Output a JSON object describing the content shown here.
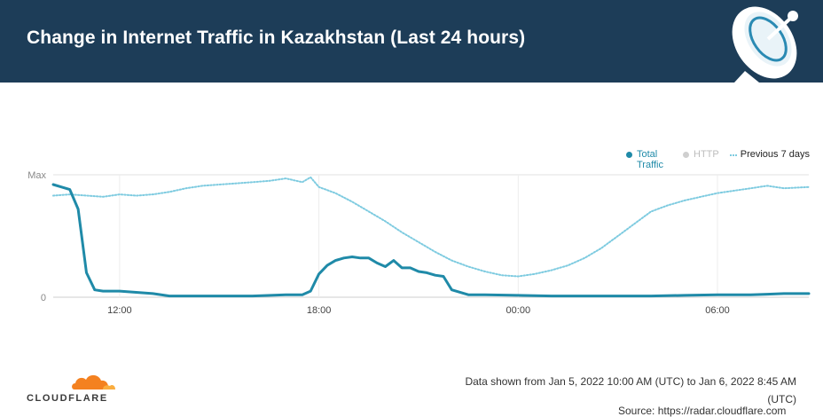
{
  "header": {
    "title": "Change in Internet Traffic in Kazakhstan (Last 24 hours)"
  },
  "legend": {
    "total_label": "Total Traffic",
    "http_label": "HTTP",
    "previous_label": "Previous 7 days"
  },
  "footer": {
    "brand": "CLOUDFLARE",
    "range_line1": "Data shown from Jan 5, 2022 10:00 AM (UTC) to Jan 6, 2022 8:45 AM",
    "range_line2": "(UTC)",
    "source": "Source: https://radar.cloudflare.com"
  },
  "colors": {
    "header_bg": "#1d3d58",
    "total": "#1f8aa8",
    "previous": "#7ecbe0",
    "http": "#cfcfcf",
    "logo_orange": "#f48120"
  },
  "chart_data": {
    "type": "line",
    "xlabel": "",
    "ylabel": "",
    "x_ticks": [
      "12:00",
      "18:00",
      "00:00",
      "06:00"
    ],
    "y_ticks": [
      "Max",
      "0"
    ],
    "x_range_hours": [
      0,
      22.75
    ],
    "ylim": [
      0,
      100
    ],
    "legend_position": "top-right",
    "grid": true,
    "series": [
      {
        "name": "Total Traffic",
        "x": [
          0,
          0.25,
          0.5,
          0.75,
          1.0,
          1.25,
          1.5,
          1.75,
          2.0,
          2.5,
          3.0,
          3.5,
          4,
          5,
          6,
          7,
          7.5,
          7.75,
          8.0,
          8.25,
          8.5,
          8.75,
          9.0,
          9.25,
          9.5,
          9.75,
          10.0,
          10.25,
          10.5,
          10.75,
          11.0,
          11.25,
          11.5,
          11.75,
          12.0,
          12.5,
          13,
          14,
          15,
          16,
          17,
          18,
          19,
          20,
          21,
          21.5,
          22,
          22.5,
          22.75
        ],
        "values": [
          92,
          90,
          88,
          72,
          20,
          6,
          5,
          5,
          5,
          4,
          3,
          1,
          1,
          1,
          1,
          2,
          2,
          5,
          19,
          26,
          30,
          32,
          33,
          32,
          32,
          28,
          25,
          30,
          24,
          24,
          21,
          20,
          18,
          17,
          6,
          2,
          2,
          1.5,
          1,
          1,
          1,
          1,
          1.5,
          2,
          2,
          2.5,
          3,
          3,
          3
        ]
      },
      {
        "name": "Previous 7 days",
        "x": [
          0,
          0.5,
          1,
          1.5,
          2,
          2.5,
          3,
          3.5,
          4,
          4.5,
          5,
          5.5,
          6,
          6.5,
          7,
          7.5,
          7.75,
          8,
          8.5,
          9,
          9.5,
          10,
          10.5,
          11,
          11.5,
          12,
          12.5,
          13,
          13.5,
          14,
          14.5,
          15,
          15.5,
          16,
          16.5,
          17,
          17.5,
          18,
          18.5,
          19,
          19.5,
          20,
          20.5,
          21,
          21.5,
          22,
          22.75
        ],
        "values": [
          83,
          84,
          83,
          82,
          84,
          83,
          84,
          86,
          89,
          91,
          92,
          93,
          94,
          95,
          97,
          94,
          98,
          90,
          85,
          78,
          70,
          62,
          53,
          45,
          37,
          30,
          25,
          21,
          18,
          17,
          19,
          22,
          26,
          32,
          40,
          50,
          60,
          70,
          75,
          79,
          82,
          85,
          87,
          89,
          91,
          89,
          90
        ]
      }
    ]
  }
}
